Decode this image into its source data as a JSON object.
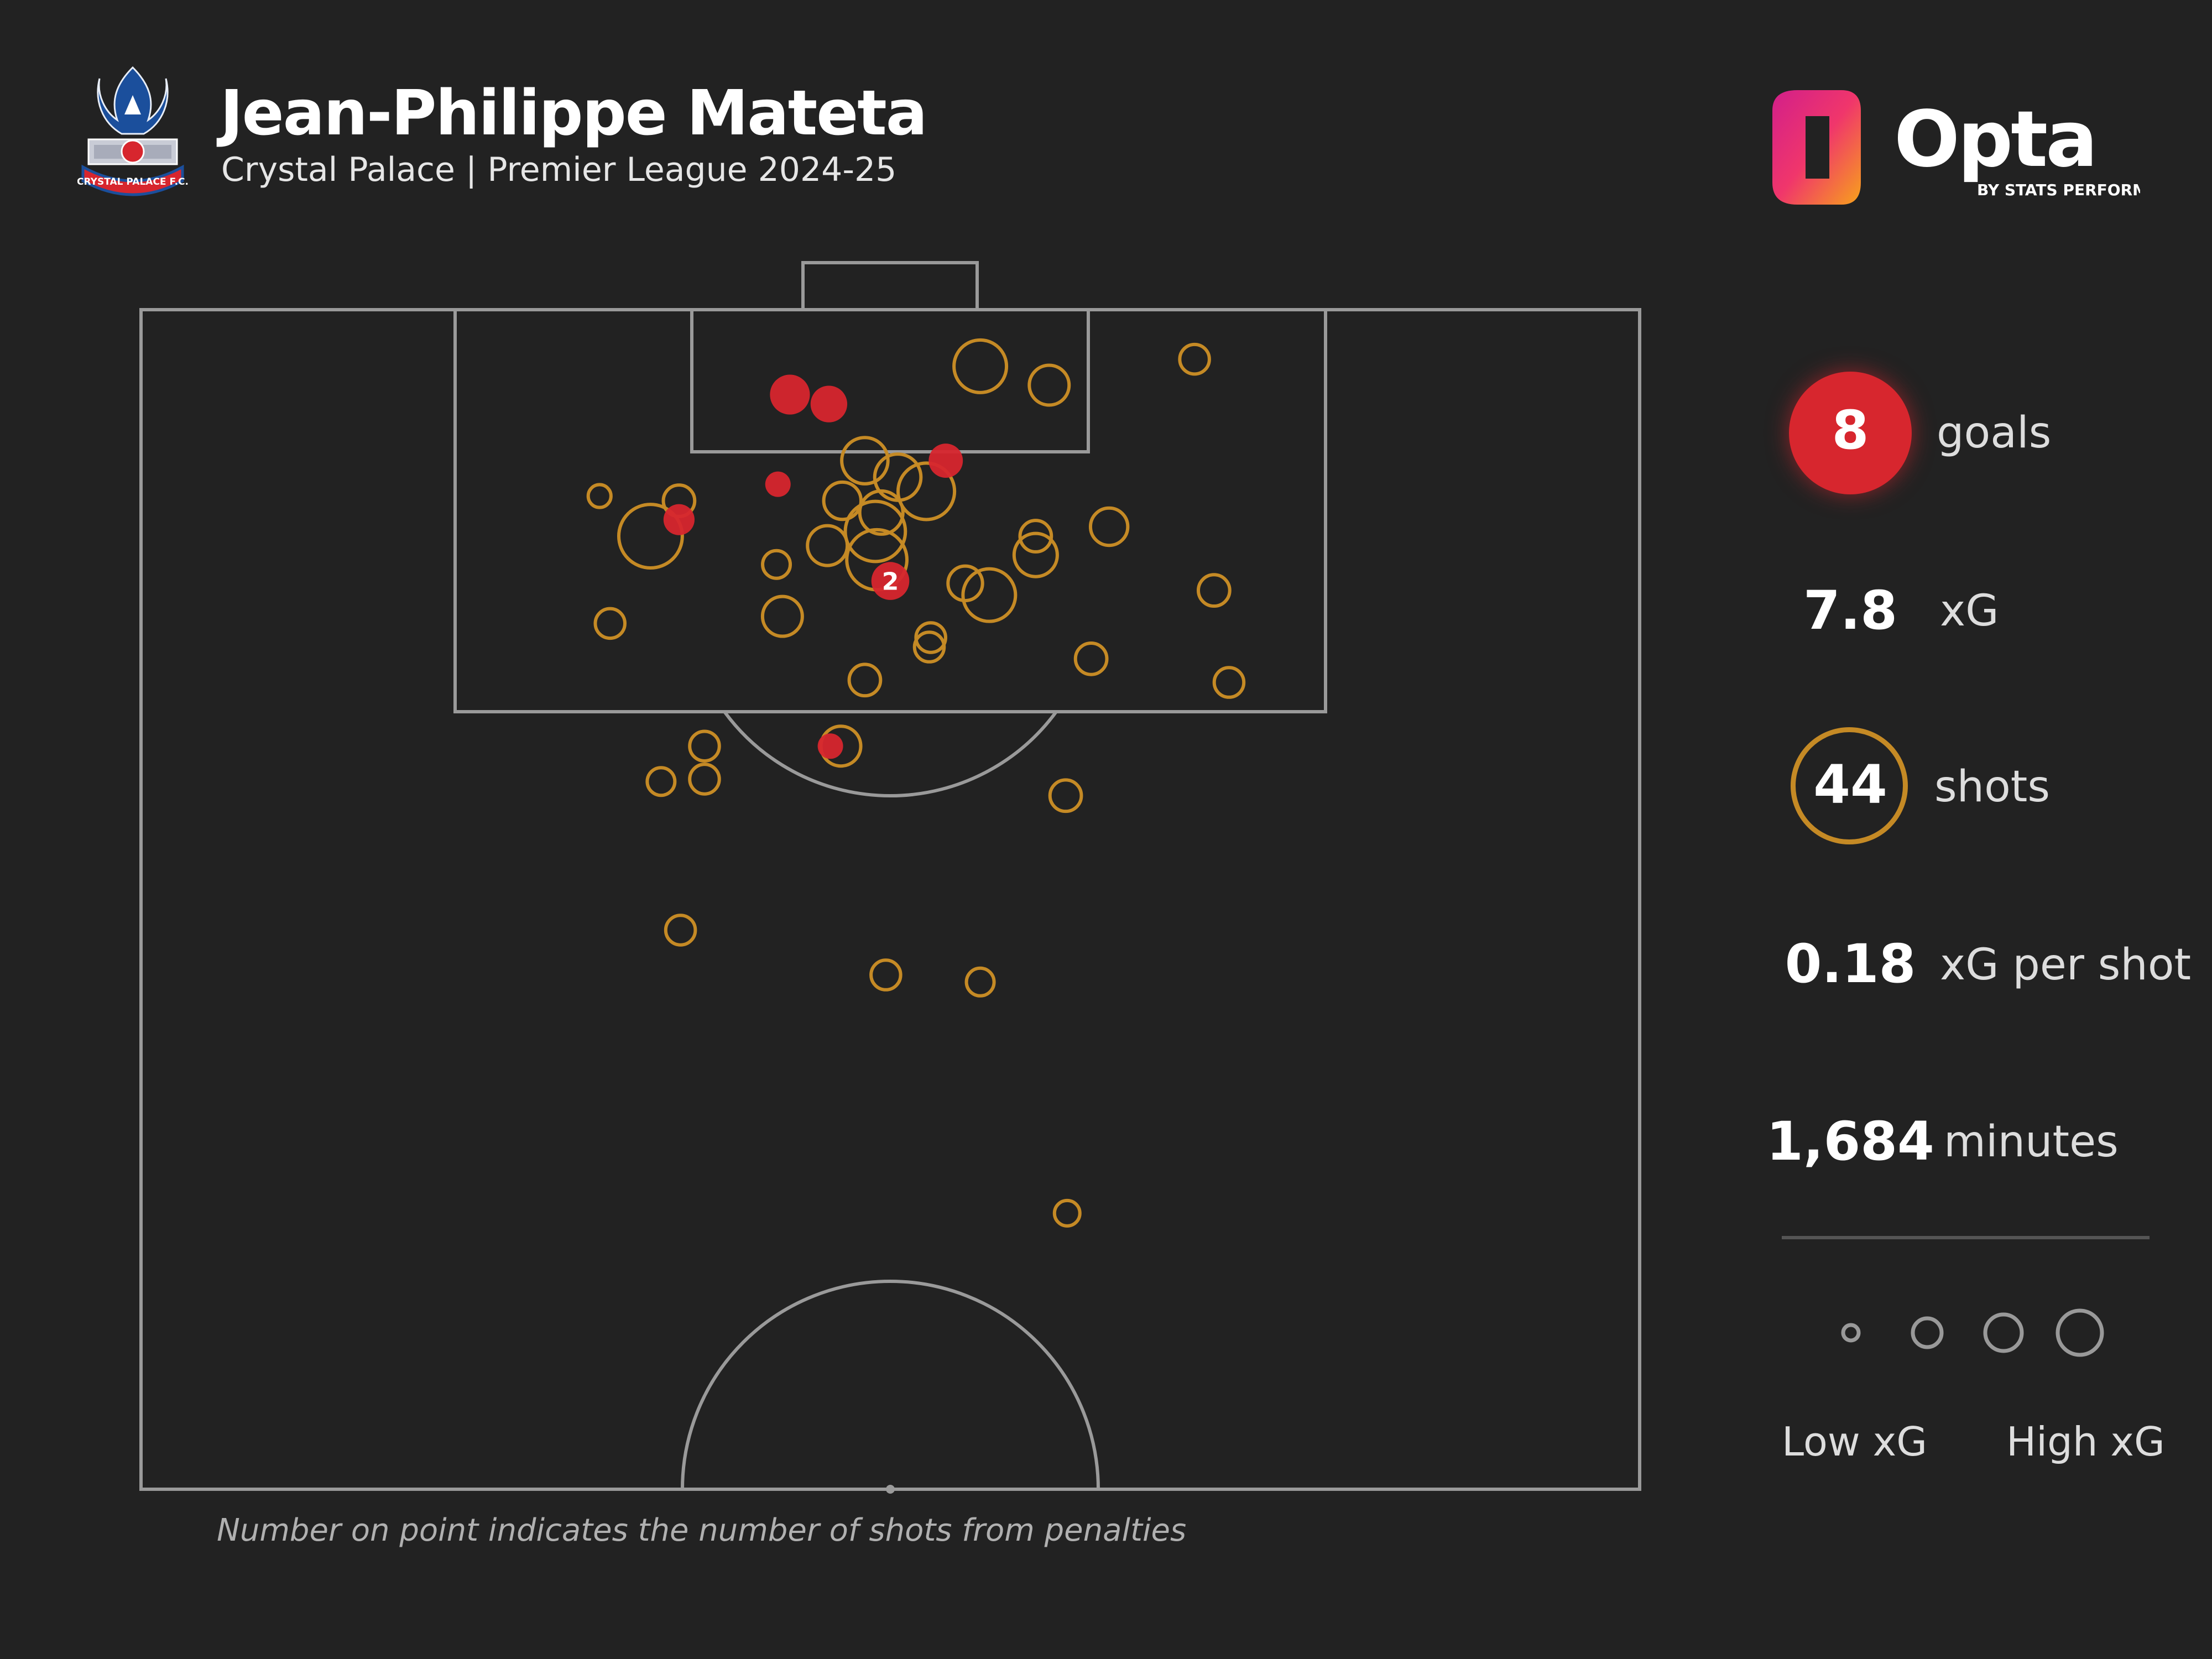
{
  "header": {
    "title": "Jean-Philippe Mateta",
    "subtitle": "Crystal Palace | Premier League 2024-25",
    "crest_text": "CRYSTAL PALACE F.C.",
    "brand_name": "Opta",
    "brand_tagline": "BY STATS PERFORM"
  },
  "stats": {
    "goals_value": "8",
    "goals_label": "goals",
    "xg_value": "7.8",
    "xg_label": "xG",
    "shots_value": "44",
    "shots_label": "shots",
    "xg_per_shot_value": "0.18",
    "xg_per_shot_label": "xG per shot",
    "minutes_value": "1,684",
    "minutes_label": "minutes"
  },
  "legend": {
    "low_label": "Low xG",
    "high_label": "High xG",
    "xg_steps": [
      0.04,
      0.12,
      0.25,
      0.45
    ]
  },
  "footnote": "Number on point indicates the number of shots from penalties",
  "colors": {
    "background": "#222222",
    "goal": "#d7262e",
    "shot": "#c58a25",
    "pitch_lines": "#9a9a9a"
  },
  "chart_data": {
    "type": "scatter",
    "coordinate_system": "pitch x: 0 = left touchline to 100 = right touchline; y: 0 = goal line to 50 = halfway line",
    "goals": [
      {
        "x": 43.3,
        "y": 3.6,
        "xg": 0.55
      },
      {
        "x": 45.9,
        "y": 4.0,
        "xg": 0.45
      },
      {
        "x": 53.7,
        "y": 6.4,
        "xg": 0.38
      },
      {
        "x": 42.5,
        "y": 7.4,
        "xg": 0.18
      },
      {
        "x": 35.9,
        "y": 8.9,
        "xg": 0.3
      },
      {
        "x": 50.0,
        "y": 11.5,
        "xg": 0.78,
        "penalties": 2,
        "label": "2"
      },
      {
        "x": 46.0,
        "y": 18.5,
        "xg": 0.18
      }
    ],
    "shots": [
      {
        "x": 56.0,
        "y": 2.4,
        "xg": 0.25
      },
      {
        "x": 60.6,
        "y": 3.2,
        "xg": 0.12
      },
      {
        "x": 70.3,
        "y": 2.1,
        "xg": 0.05
      },
      {
        "x": 48.3,
        "y": 6.4,
        "xg": 0.18
      },
      {
        "x": 50.5,
        "y": 7.1,
        "xg": 0.18
      },
      {
        "x": 52.4,
        "y": 7.7,
        "xg": 0.3
      },
      {
        "x": 46.8,
        "y": 8.1,
        "xg": 0.1
      },
      {
        "x": 49.4,
        "y": 8.6,
        "xg": 0.15
      },
      {
        "x": 35.9,
        "y": 8.1,
        "xg": 0.06
      },
      {
        "x": 34.0,
        "y": 9.6,
        "xg": 0.4
      },
      {
        "x": 49.0,
        "y": 9.4,
        "xg": 0.35
      },
      {
        "x": 45.8,
        "y": 10.0,
        "xg": 0.12
      },
      {
        "x": 49.1,
        "y": 10.6,
        "xg": 0.35
      },
      {
        "x": 42.4,
        "y": 10.8,
        "xg": 0.04
      },
      {
        "x": 59.7,
        "y": 9.6,
        "xg": 0.06
      },
      {
        "x": 59.7,
        "y": 10.4,
        "xg": 0.15
      },
      {
        "x": 64.6,
        "y": 9.2,
        "xg": 0.1
      },
      {
        "x": 55.0,
        "y": 11.6,
        "xg": 0.08
      },
      {
        "x": 56.6,
        "y": 12.1,
        "xg": 0.25
      },
      {
        "x": 71.6,
        "y": 11.9,
        "xg": 0.06
      },
      {
        "x": 31.3,
        "y": 13.3,
        "xg": 0.05
      },
      {
        "x": 42.8,
        "y": 13.0,
        "xg": 0.12
      },
      {
        "x": 52.7,
        "y": 13.9,
        "xg": 0.05
      },
      {
        "x": 52.6,
        "y": 14.3,
        "xg": 0.05
      },
      {
        "x": 63.4,
        "y": 14.8,
        "xg": 0.06
      },
      {
        "x": 72.6,
        "y": 15.8,
        "xg": 0.05
      },
      {
        "x": 48.3,
        "y": 15.7,
        "xg": 0.06
      },
      {
        "x": 37.6,
        "y": 18.5,
        "xg": 0.05
      },
      {
        "x": 46.7,
        "y": 18.5,
        "xg": 0.12
      },
      {
        "x": 34.7,
        "y": 20.0,
        "xg": 0.04
      },
      {
        "x": 37.6,
        "y": 19.9,
        "xg": 0.05
      },
      {
        "x": 61.7,
        "y": 20.6,
        "xg": 0.06
      },
      {
        "x": 36.0,
        "y": 26.3,
        "xg": 0.05
      },
      {
        "x": 49.7,
        "y": 28.2,
        "xg": 0.05
      },
      {
        "x": 56.0,
        "y": 28.5,
        "xg": 0.04
      },
      {
        "x": 61.8,
        "y": 38.3,
        "xg": 0.03
      },
      {
        "x": 30.6,
        "y": 7.9,
        "xg": 0.02
      }
    ]
  }
}
